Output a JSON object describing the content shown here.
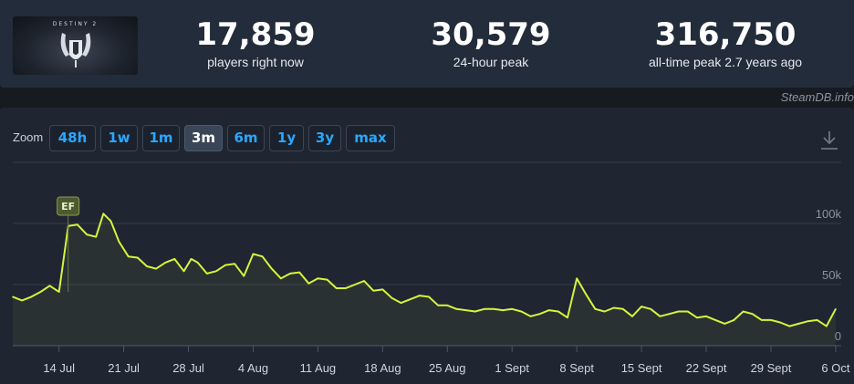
{
  "game": {
    "logo_text": "DESTINY 2"
  },
  "stats": [
    {
      "value": "17,859",
      "label": "players right now"
    },
    {
      "value": "30,579",
      "label": "24-hour peak"
    },
    {
      "value": "316,750",
      "label": "all-time peak 2.7 years ago"
    }
  ],
  "credit": "SteamDB.info",
  "zoom": {
    "label": "Zoom",
    "options": [
      "48h",
      "1w",
      "1m",
      "3m",
      "6m",
      "1y",
      "3y",
      "max"
    ],
    "selected": "3m"
  },
  "icons": {
    "download": "download-icon",
    "logo": "destiny-logo-icon"
  },
  "colors": {
    "line": "#d4f53d",
    "active_zoom": "#3a4658",
    "zoom_text": "#2aa7ff",
    "flag": "#4b5a2f"
  },
  "chart_data": {
    "type": "line",
    "title": "",
    "xlabel": "",
    "ylabel": "",
    "x_ticks": [
      "14 Jul",
      "21 Jul",
      "28 Jul",
      "4 Aug",
      "11 Aug",
      "18 Aug",
      "25 Aug",
      "1 Sept",
      "8 Sept",
      "15 Sept",
      "22 Sept",
      "29 Sept",
      "6 Oct"
    ],
    "y_ticks": [
      0,
      50000,
      100000
    ],
    "y_tick_labels": [
      "0",
      "50k",
      "100k"
    ],
    "ylim": [
      0,
      150000
    ],
    "grid": true,
    "flag": {
      "label": "EF",
      "day": 14
    },
    "series": [
      {
        "values": [
          [
            9,
            40000
          ],
          [
            10,
            37000
          ],
          [
            11,
            40000
          ],
          [
            12,
            44000
          ],
          [
            13,
            49000
          ],
          [
            14,
            44000
          ],
          [
            15,
            98000
          ],
          [
            16,
            99000
          ],
          [
            17,
            91000
          ],
          [
            18,
            89000
          ],
          [
            18.8,
            108000
          ],
          [
            19.6,
            102000
          ],
          [
            20.5,
            85000
          ],
          [
            21.5,
            73000
          ],
          [
            22.5,
            72000
          ],
          [
            23.5,
            65000
          ],
          [
            24.5,
            63000
          ],
          [
            25.5,
            68000
          ],
          [
            26.5,
            71000
          ],
          [
            27.5,
            61000
          ],
          [
            28.3,
            71000
          ],
          [
            29,
            68000
          ],
          [
            30,
            59000
          ],
          [
            31,
            61000
          ],
          [
            32,
            66000
          ],
          [
            33,
            67000
          ],
          [
            34,
            57000
          ],
          [
            35,
            75000
          ],
          [
            36,
            73000
          ],
          [
            37,
            63000
          ],
          [
            38,
            55000
          ],
          [
            39,
            59000
          ],
          [
            40,
            60000
          ],
          [
            41,
            51000
          ],
          [
            42,
            55000
          ],
          [
            43,
            54000
          ],
          [
            44,
            47000
          ],
          [
            45,
            47000
          ],
          [
            46,
            50000
          ],
          [
            47,
            53000
          ],
          [
            48,
            45000
          ],
          [
            49,
            46000
          ],
          [
            50,
            39000
          ],
          [
            51,
            35000
          ],
          [
            52,
            38000
          ],
          [
            53,
            41000
          ],
          [
            54,
            40000
          ],
          [
            55,
            33000
          ],
          [
            56,
            33000
          ],
          [
            57,
            30000
          ],
          [
            58,
            29000
          ],
          [
            59,
            28000
          ],
          [
            60,
            30000
          ],
          [
            61,
            30000
          ],
          [
            62,
            29000
          ],
          [
            63,
            30000
          ],
          [
            64,
            28000
          ],
          [
            65,
            24000
          ],
          [
            66,
            26000
          ],
          [
            67,
            29000
          ],
          [
            68,
            28000
          ],
          [
            69,
            23000
          ],
          [
            70,
            55000
          ],
          [
            71,
            42000
          ],
          [
            72,
            30000
          ],
          [
            73,
            28000
          ],
          [
            74,
            31000
          ],
          [
            75,
            30000
          ],
          [
            76,
            24000
          ],
          [
            77,
            32000
          ],
          [
            78,
            30000
          ],
          [
            79,
            24000
          ],
          [
            80,
            26000
          ],
          [
            81,
            28000
          ],
          [
            82,
            28000
          ],
          [
            83,
            23000
          ],
          [
            84,
            24000
          ],
          [
            85,
            21000
          ],
          [
            86,
            18000
          ],
          [
            87,
            21000
          ],
          [
            88,
            28000
          ],
          [
            89,
            26000
          ],
          [
            90,
            21000
          ],
          [
            91,
            21000
          ],
          [
            92,
            19000
          ],
          [
            93,
            16000
          ],
          [
            94,
            18000
          ],
          [
            95,
            20000
          ],
          [
            96,
            21000
          ],
          [
            97,
            16000
          ],
          [
            98,
            30000
          ]
        ]
      }
    ]
  }
}
